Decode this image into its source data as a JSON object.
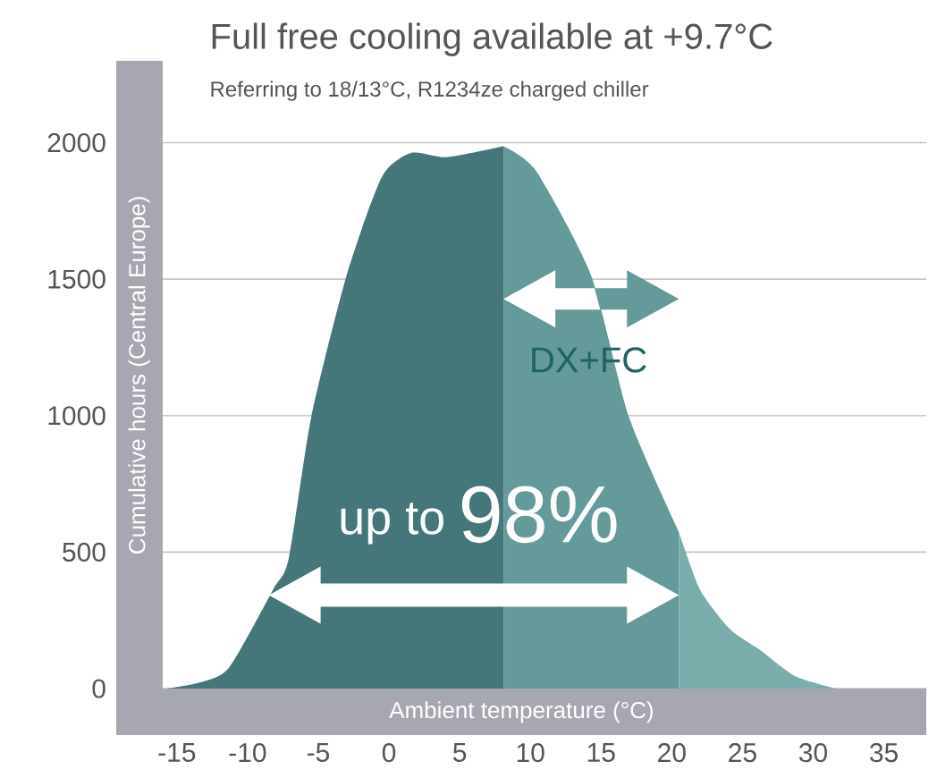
{
  "chart_data": {
    "type": "area",
    "title": "Full free cooling available at +9.7°C",
    "subtitle": "Referring to 18/13°C, R1234ze charged chiller",
    "xlabel": "Ambient temperature (°C)",
    "ylabel": "Cumulative hours (Central Europe)",
    "series": [
      {
        "color": "#44767a",
        "x": [
          -15.7,
          -13.4,
          -11.3,
          -8.2,
          -7.1,
          -5.5,
          -3.0,
          -0.5,
          1.6,
          4.1,
          8.1
        ],
        "values": [
          0,
          22,
          77,
          362,
          474,
          993,
          1513,
          1875,
          1963,
          1947,
          1987
        ]
      },
      {
        "color": "#649a9a",
        "x": [
          8.1,
          10.4,
          14.3,
          17.0,
          20.5
        ],
        "values": [
          1987,
          1897,
          1513,
          991,
          575
        ]
      },
      {
        "color": "#79aeac",
        "x": [
          20.5,
          22.0,
          24.1,
          26.2,
          28.7,
          31.6
        ],
        "values": [
          575,
          362,
          219,
          143,
          46,
          0
        ]
      }
    ],
    "xlim": [
      -16,
      38
    ],
    "ylim": [
      0,
      2300
    ],
    "xticks": [
      -15,
      -10,
      -5,
      0,
      5,
      10,
      15,
      20,
      25,
      30,
      35
    ],
    "yticks": [
      0,
      500,
      1000,
      1500,
      2000
    ],
    "grid": "y",
    "annotations": [
      "DX+FC",
      "up to",
      "98%"
    ]
  }
}
